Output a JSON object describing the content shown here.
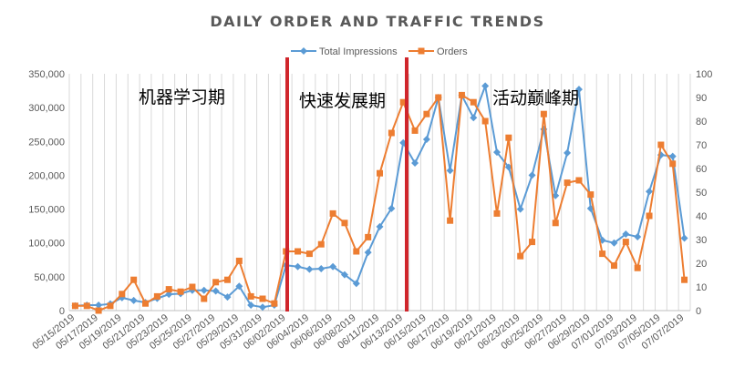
{
  "chart_data": {
    "type": "line",
    "title": "DAILY ORDER AND TRAFFIC TRENDS",
    "x_tick_labels": [
      "05/15/2019",
      "05/17/2019",
      "05/19/2019",
      "05/21/2019",
      "05/23/2019",
      "05/25/2019",
      "05/27/2019",
      "05/29/2019",
      "05/31/2019",
      "06/02/2019",
      "06/04/2019",
      "06/06/2019",
      "06/08/2019",
      "06/11/2019",
      "06/13/2019",
      "06/15/2019",
      "06/17/2019",
      "06/19/2019",
      "06/21/2019",
      "06/23/2019",
      "06/25/2019",
      "06/27/2019",
      "06/29/2019",
      "07/01/2019",
      "07/03/2019",
      "07/05/2019",
      "07/07/2019"
    ],
    "y_left": {
      "min": 0,
      "max": 350000,
      "ticks": [
        "0",
        "50,000",
        "100,000",
        "150,000",
        "200,000",
        "250,000",
        "300,000",
        "350,000"
      ]
    },
    "y_right": {
      "min": 0,
      "max": 100,
      "ticks": [
        "0",
        "10",
        "20",
        "30",
        "40",
        "50",
        "60",
        "70",
        "80",
        "90",
        "100"
      ]
    },
    "grid": "vertical",
    "legend": "top-center",
    "series": [
      {
        "name": "Total Impressions",
        "axis": "left",
        "color": "#5B9BD5",
        "marker": "diamond",
        "values": [
          7000,
          8000,
          8000,
          10000,
          19000,
          15000,
          12000,
          18000,
          24000,
          25000,
          30000,
          30000,
          29000,
          20000,
          36000,
          8000,
          5000,
          8000,
          67000,
          65000,
          61000,
          62000,
          65000,
          53000,
          40000,
          86000,
          124000,
          151000,
          248000,
          218000,
          253000,
          315000,
          207000,
          318000,
          285000,
          332000,
          234000,
          212000,
          150000,
          200000,
          268000,
          170000,
          233000,
          327000,
          151000,
          104000,
          100000,
          113000,
          109000,
          176000,
          230000,
          228000,
          107000
        ]
      },
      {
        "name": "Orders",
        "axis": "right",
        "color": "#ED7D31",
        "marker": "square",
        "values": [
          2,
          2,
          0,
          2,
          7,
          13,
          3,
          6,
          9,
          8,
          10,
          5,
          12,
          13,
          21,
          6,
          5,
          3,
          25,
          25,
          24,
          28,
          41,
          37,
          25,
          31,
          58,
          75,
          88,
          76,
          83,
          90,
          38,
          91,
          88,
          80,
          41,
          73,
          23,
          29,
          83,
          37,
          54,
          55,
          49,
          24,
          19,
          29,
          18,
          40,
          70,
          62,
          13
        ]
      }
    ],
    "annotations": [
      {
        "label": "机器学习期"
      },
      {
        "label": "快速发展期"
      },
      {
        "label": "活动巅峰期"
      }
    ],
    "phase_divider_color": "#D0262C"
  }
}
